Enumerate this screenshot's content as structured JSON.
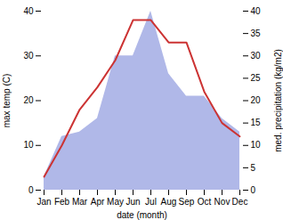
{
  "chart_data": {
    "type": "line",
    "xlabel": "date (month)",
    "ylabel": "max temp (C)",
    "y2label": "med. precipitation (kg/m2)",
    "categories": [
      "Jan",
      "Feb",
      "Mar",
      "Apr",
      "May",
      "Jun",
      "Jul",
      "Aug",
      "Sep",
      "Oct",
      "Nov",
      "Dec"
    ],
    "series": [
      {
        "type": "area",
        "color": "#b0b8e8",
        "axis": "y2",
        "values": [
          3,
          12,
          13,
          16,
          30,
          30,
          40,
          26,
          21,
          21,
          16,
          13
        ]
      },
      {
        "type": "line",
        "color": "#cc3333",
        "values": [
          3,
          10,
          18,
          23,
          29,
          38,
          38,
          33,
          33,
          22,
          15,
          12
        ]
      }
    ],
    "ylim": [
      0,
      40
    ],
    "yticks": [
      0,
      10,
      20,
      30,
      40
    ],
    "y2lim": [
      0,
      40
    ],
    "y2ticks": [
      0,
      5,
      10,
      15,
      20,
      25,
      30,
      35,
      40
    ]
  }
}
